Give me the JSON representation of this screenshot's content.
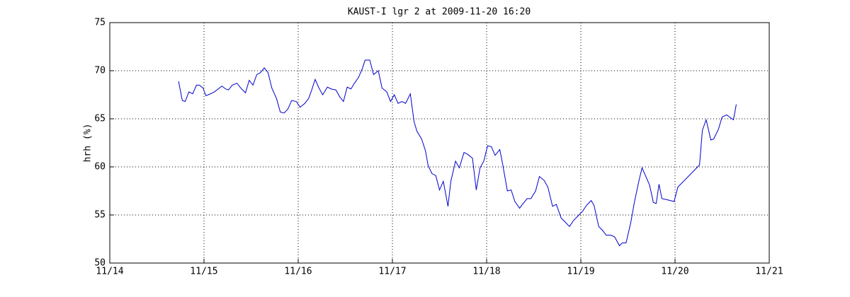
{
  "chart_data": {
    "type": "line",
    "title": "KAUST-I lgr 2 at 2009-11-20 16:20",
    "y_label": "hrh (%)",
    "color": "#0000cc",
    "grid": true,
    "xlim": [
      14,
      21
    ],
    "xticks": [
      {
        "value": 14,
        "label": "11/14"
      },
      {
        "value": 15,
        "label": "11/15"
      },
      {
        "value": 16,
        "label": "11/16"
      },
      {
        "value": 17,
        "label": "11/17"
      },
      {
        "value": 18,
        "label": "11/18"
      },
      {
        "value": 19,
        "label": "11/19"
      },
      {
        "value": 20,
        "label": "11/20"
      },
      {
        "value": 21,
        "label": "11/21"
      }
    ],
    "ylim": [
      50,
      75
    ],
    "yticks": [
      50,
      55,
      60,
      65,
      70,
      75
    ],
    "x": [
      14.73,
      14.77,
      14.8,
      14.84,
      14.88,
      14.92,
      14.95,
      14.99,
      15.02,
      15.07,
      15.11,
      15.19,
      15.23,
      15.26,
      15.3,
      15.35,
      15.39,
      15.44,
      15.48,
      15.52,
      15.56,
      15.6,
      15.64,
      15.68,
      15.72,
      15.77,
      15.81,
      15.85,
      15.89,
      15.93,
      15.98,
      16.02,
      16.07,
      16.11,
      16.14,
      16.18,
      16.22,
      16.26,
      16.31,
      16.35,
      16.4,
      16.44,
      16.48,
      16.52,
      16.56,
      16.59,
      16.64,
      16.68,
      16.71,
      16.76,
      16.8,
      16.85,
      16.89,
      16.94,
      16.98,
      17.02,
      17.06,
      17.1,
      17.14,
      17.19,
      17.23,
      17.26,
      17.31,
      17.35,
      17.38,
      17.42,
      17.46,
      17.5,
      17.54,
      17.59,
      17.62,
      17.67,
      17.71,
      17.76,
      17.8,
      17.85,
      17.89,
      17.93,
      17.97,
      18.01,
      18.05,
      18.09,
      18.14,
      18.17,
      18.22,
      18.26,
      18.3,
      18.35,
      18.38,
      18.43,
      18.47,
      18.52,
      18.56,
      18.61,
      18.65,
      18.7,
      18.74,
      18.79,
      18.83,
      18.88,
      18.92,
      18.97,
      19.02,
      19.06,
      19.11,
      19.14,
      19.19,
      19.23,
      19.27,
      19.32,
      19.36,
      19.41,
      19.44,
      19.48,
      19.53,
      19.57,
      19.62,
      19.65,
      19.69,
      19.73,
      19.77,
      19.8,
      19.83,
      19.86,
      19.91,
      19.95,
      19.99,
      20.03,
      20.26,
      20.29,
      20.33,
      20.38,
      20.41,
      20.46,
      20.5,
      20.55,
      20.59,
      20.62,
      20.65
    ],
    "values": [
      68.9,
      66.9,
      66.8,
      67.8,
      67.6,
      68.5,
      68.5,
      68.2,
      67.4,
      67.6,
      67.8,
      68.4,
      68.1,
      68.0,
      68.5,
      68.7,
      68.2,
      67.7,
      69.0,
      68.5,
      69.6,
      69.8,
      70.3,
      69.8,
      68.2,
      67.1,
      65.7,
      65.6,
      66.0,
      66.9,
      66.8,
      66.2,
      66.6,
      67.1,
      67.9,
      69.1,
      68.2,
      67.5,
      68.3,
      68.1,
      68.0,
      67.3,
      66.8,
      68.3,
      68.1,
      68.6,
      69.3,
      70.2,
      71.1,
      71.1,
      69.6,
      70.0,
      68.2,
      67.8,
      66.8,
      67.5,
      66.6,
      66.8,
      66.6,
      67.6,
      64.7,
      63.7,
      62.9,
      61.7,
      60.1,
      59.3,
      59.1,
      57.6,
      58.5,
      55.9,
      58.5,
      60.6,
      59.9,
      61.5,
      61.3,
      60.9,
      57.6,
      59.9,
      60.6,
      62.2,
      62.1,
      61.2,
      61.8,
      60.3,
      57.5,
      57.6,
      56.4,
      55.7,
      56.1,
      56.7,
      56.7,
      57.5,
      59.0,
      58.6,
      57.9,
      55.9,
      56.1,
      54.7,
      54.3,
      53.8,
      54.4,
      54.9,
      55.4,
      56.0,
      56.5,
      56.0,
      53.8,
      53.4,
      52.9,
      52.9,
      52.7,
      51.8,
      52.1,
      52.1,
      54.2,
      56.4,
      58.7,
      59.9,
      59.0,
      58.1,
      56.3,
      56.2,
      58.2,
      56.7,
      56.6,
      56.5,
      56.4,
      57.9,
      60.2,
      63.8,
      64.9,
      62.8,
      62.9,
      63.9,
      65.2,
      65.4,
      65.1,
      64.9,
      66.5
    ]
  }
}
